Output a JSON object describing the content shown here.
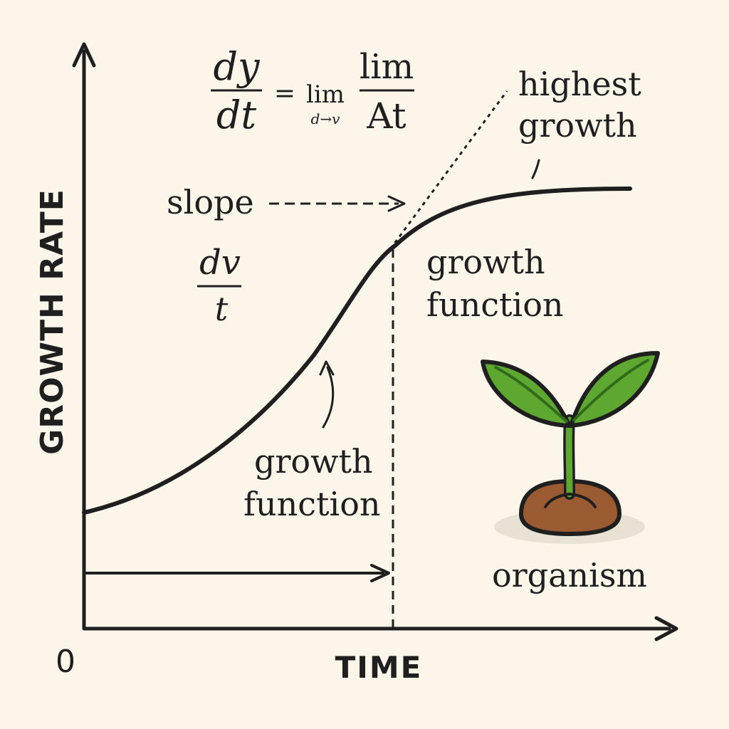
{
  "axes": {
    "y_label": "GROWTH RATE",
    "x_label": "TIME",
    "origin_label": "0"
  },
  "formula": {
    "lhs_num": "dy",
    "lhs_den": "dt",
    "equals": "=",
    "lim": "lim",
    "lim_sub": "d→v",
    "rhs_num": "lim",
    "rhs_den": "At"
  },
  "small_fraction": {
    "num": "dv",
    "den": "t"
  },
  "labels": {
    "slope": "slope",
    "highest_growth_line1": "highest",
    "highest_growth_line2": "growth",
    "growth_function_upper_line1": "growth",
    "growth_function_upper_line2": "function",
    "growth_function_lower_line1": "growth",
    "growth_function_lower_line2": "function",
    "organism": "organism"
  },
  "colors": {
    "background": "#fbf6e9",
    "ink": "#1f1f1f",
    "leaf": "#5ea832",
    "leaf_dark": "#2f6b1a",
    "soil": "#9a5a32",
    "soil_shadow": "#e7e2d3"
  },
  "icons": [
    "seedling-icon"
  ]
}
